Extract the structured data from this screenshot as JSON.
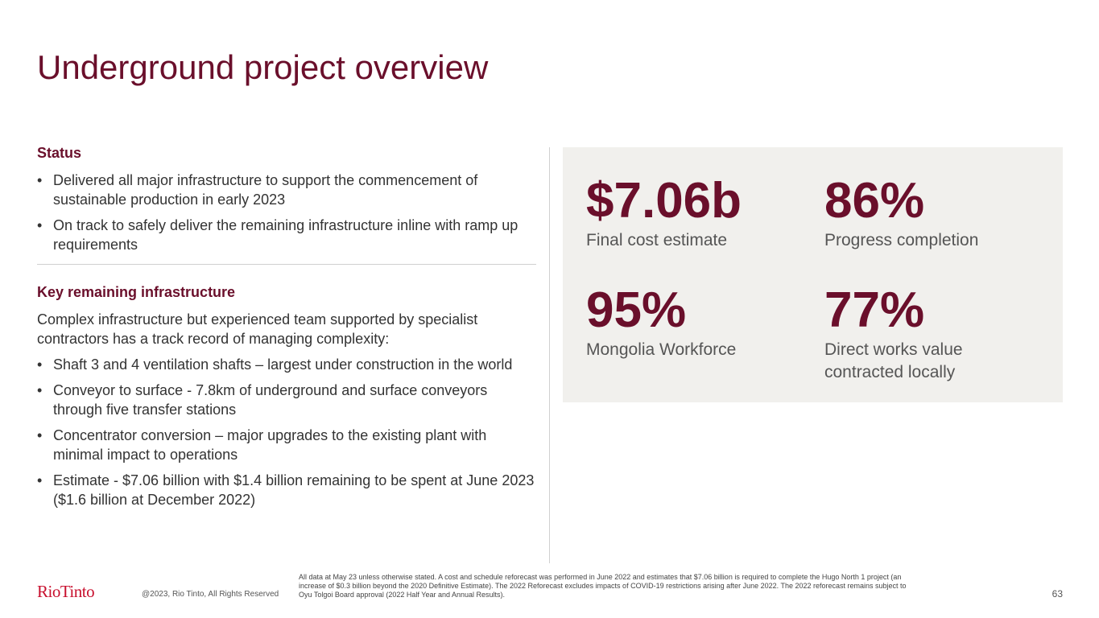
{
  "slide": {
    "title": "Underground project overview"
  },
  "status": {
    "heading": "Status",
    "bullet_char": "•",
    "bullets": [
      "Delivered all major infrastructure to support the commencement of sustainable production in early 2023",
      "On track to safely deliver the remaining infrastructure inline with ramp up requirements"
    ]
  },
  "remaining": {
    "heading": "Key remaining infrastructure",
    "intro": "Complex infrastructure but experienced team supported by specialist contractors has a track record of managing complexity:",
    "bullets": [
      "Shaft 3 and 4 ventilation shafts – largest under construction in the world",
      "Conveyor to surface - 7.8km of underground and surface conveyors through five transfer stations",
      "Concentrator conversion – major upgrades to the existing plant with minimal impact to operations",
      "Estimate - $7.06 billion with $1.4 billion remaining to be spent at June 2023 ($1.6 billion at December 2022)"
    ]
  },
  "kpis": [
    {
      "value": "$7.06b",
      "label": "Final cost estimate"
    },
    {
      "value": "86%",
      "label": "Progress completion"
    },
    {
      "value": "95%",
      "label": "Mongolia Workforce"
    },
    {
      "value": "77%",
      "label": "Direct works value contracted locally"
    }
  ],
  "footer": {
    "logo_text": "RioTinto",
    "copyright": "@2023, Rio Tinto, All Rights Reserved",
    "footnote": "All data at May 23 unless otherwise stated. A cost and schedule reforecast was performed in June 2022 and estimates that $7.06 billion is required to complete the Hugo North 1 project (an increase of $0.3 billion beyond the 2020 Definitive Estimate). The 2022 Reforecast excludes impacts of COVID-19 restrictions arising after June 2022. The 2022 reforecast remains subject to Oyu Tolgoi Board approval (2022 Half Year and Annual Results).",
    "page_number": "63"
  },
  "colors": {
    "brand": "#6a0f2b",
    "logo_red": "#c8102e",
    "panel_bg": "#f1f0ed",
    "body_text": "#333333"
  }
}
